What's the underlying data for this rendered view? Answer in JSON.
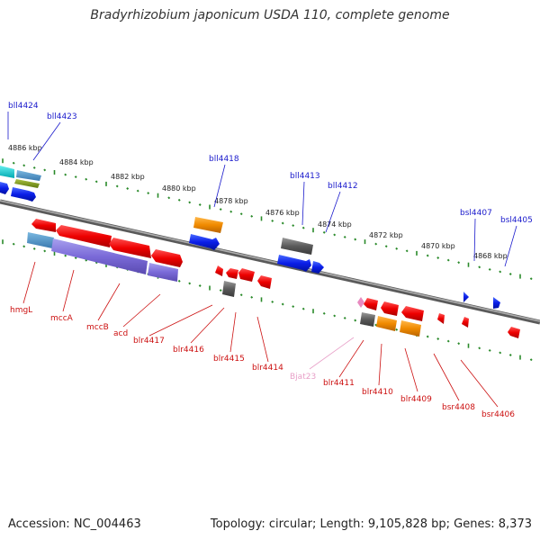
{
  "title": "Bradyrhizobium japonicum USDA 110, complete genome",
  "accession": "Accession: NC_004463",
  "topology": "Topology: circular; Length: 9,105,828 bp; Genes: 8,373",
  "colors": {
    "minus_strand_label": "#1a1acc",
    "plus_strand_label": "#cc1111",
    "rna_label": "#e8a0c8",
    "backbone": "#7a7a7a",
    "tick_minor": "#2a8a2a",
    "tick_major": "#2a8a2a"
  },
  "scale_labels": [
    "4886 kbp",
    "4884 kbp",
    "4882 kbp",
    "4880 kbp",
    "4878 kbp",
    "4876 kbp",
    "4874 kbp",
    "4872 kbp",
    "4870 kbp",
    "4868 kbp"
  ],
  "top_genes": [
    "bll4424",
    "bll4423",
    "bll4418",
    "bll4413",
    "bll4412",
    "bsl4407",
    "bsl4405"
  ],
  "bottom_genes": [
    "hmgL",
    "mccA",
    "mccB",
    "acd",
    "blr4417",
    "blr4416",
    "blr4415",
    "blr4414",
    "Bjat23",
    "blr4411",
    "blr4410",
    "blr4409",
    "bsr4408",
    "bsr4406"
  ]
}
